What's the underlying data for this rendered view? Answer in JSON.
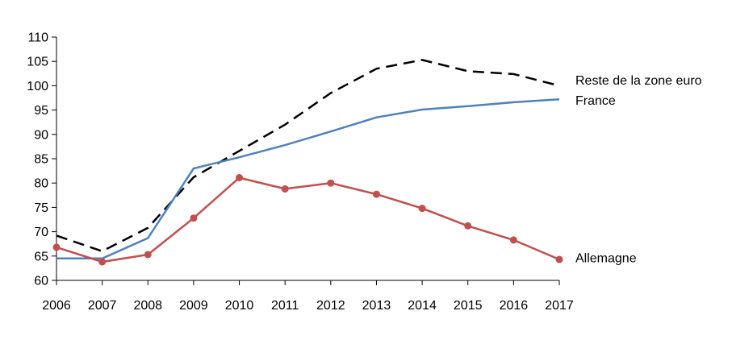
{
  "chart_data": {
    "type": "line",
    "title": "",
    "xlabel": "",
    "ylabel": "",
    "x": [
      "2006",
      "2007",
      "2008",
      "2009",
      "2010",
      "2011",
      "2012",
      "2013",
      "2014",
      "2015",
      "2016",
      "2017"
    ],
    "ylim": [
      60,
      110
    ],
    "yticks": [
      60,
      65,
      70,
      75,
      80,
      85,
      90,
      95,
      100,
      105,
      110
    ],
    "grid": false,
    "legend": "inline labels at right end of each series",
    "series": [
      {
        "name": "Reste de la zone euro",
        "values": [
          69.2,
          66.0,
          70.8,
          81.2,
          86.6,
          92.0,
          98.5,
          103.5,
          105.3,
          103.0,
          102.4,
          100.0
        ],
        "color": "#000000",
        "style": "dashed",
        "markers": false
      },
      {
        "name": "France",
        "values": [
          64.5,
          64.5,
          68.7,
          83.0,
          85.3,
          87.8,
          90.6,
          93.5,
          95.1,
          95.8,
          96.6,
          97.2
        ],
        "color": "#4F81BD",
        "style": "solid",
        "markers": false
      },
      {
        "name": "Allemagne",
        "values": [
          66.8,
          63.8,
          65.3,
          72.8,
          81.1,
          78.8,
          80.0,
          77.7,
          74.8,
          71.2,
          68.3,
          64.3
        ],
        "color": "#C0504D",
        "style": "solid",
        "markers": true
      }
    ]
  }
}
